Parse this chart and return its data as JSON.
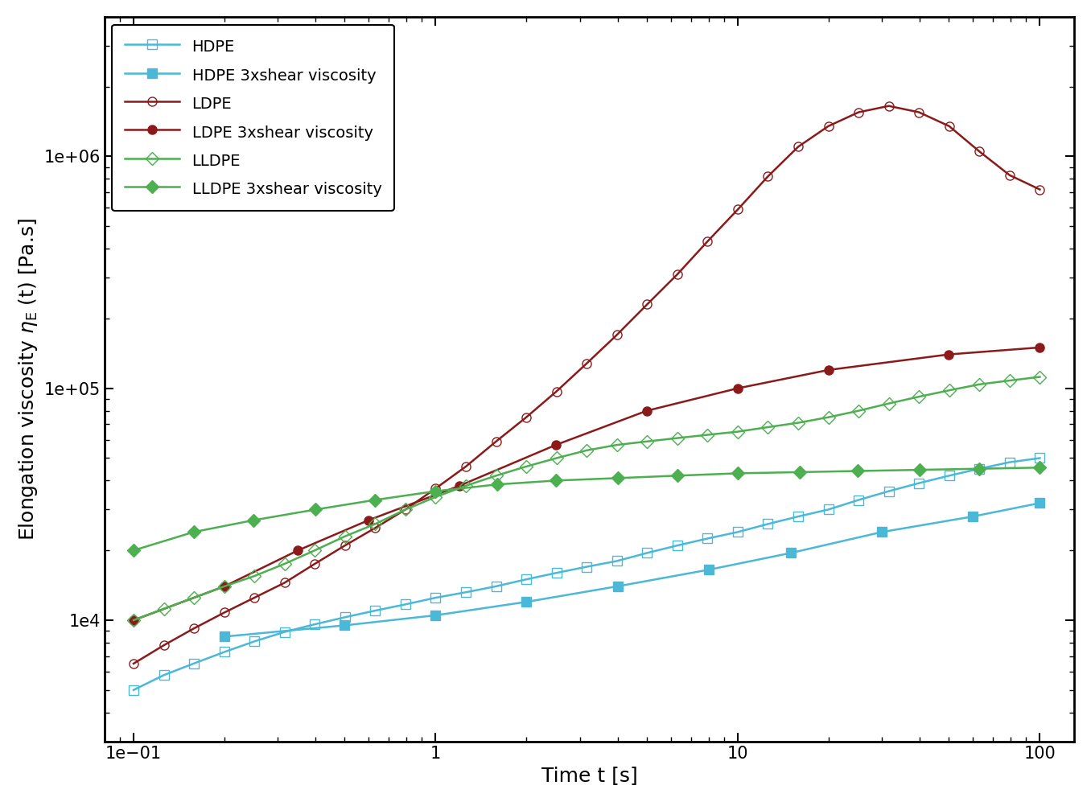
{
  "xlabel": "Time t [s]",
  "xlim": [
    0.08,
    130
  ],
  "ylim": [
    3000,
    4000000
  ],
  "colors": {
    "hdpe": "#4BB8D8",
    "ldpe": "#8B1A1A",
    "lldpe": "#4CAF50"
  },
  "HDPE_elongation": {
    "t": [
      0.1,
      0.126,
      0.158,
      0.2,
      0.251,
      0.316,
      0.398,
      0.501,
      0.631,
      0.794,
      1.0,
      1.259,
      1.585,
      1.995,
      2.512,
      3.162,
      3.981,
      5.012,
      6.31,
      7.943,
      10.0,
      12.59,
      15.85,
      19.95,
      25.12,
      31.62,
      39.81,
      50.12,
      63.1,
      79.43,
      100.0
    ],
    "eta": [
      5000,
      5800,
      6500,
      7300,
      8100,
      8900,
      9600,
      10300,
      11000,
      11700,
      12500,
      13200,
      14000,
      15000,
      16000,
      17000,
      18000,
      19500,
      21000,
      22500,
      24000,
      26000,
      28000,
      30000,
      33000,
      36000,
      39000,
      42000,
      45000,
      48000,
      50000
    ]
  },
  "HDPE_shear": {
    "t": [
      0.2,
      0.5,
      1.0,
      2.0,
      4.0,
      8.0,
      15.0,
      30.0,
      60.0,
      100.0
    ],
    "eta": [
      8500,
      9500,
      10500,
      12000,
      14000,
      16500,
      19500,
      24000,
      28000,
      32000
    ]
  },
  "LDPE_elongation": {
    "t": [
      0.1,
      0.126,
      0.158,
      0.2,
      0.251,
      0.316,
      0.398,
      0.501,
      0.631,
      0.794,
      1.0,
      1.259,
      1.585,
      1.995,
      2.512,
      3.162,
      3.981,
      5.012,
      6.31,
      7.943,
      10.0,
      12.59,
      15.85,
      19.95,
      25.12,
      31.62,
      39.81,
      50.12,
      63.1,
      79.43,
      100.0
    ],
    "eta": [
      6500,
      7800,
      9200,
      10800,
      12500,
      14500,
      17500,
      21000,
      25000,
      30000,
      37000,
      46000,
      59000,
      75000,
      97000,
      128000,
      170000,
      230000,
      310000,
      430000,
      590000,
      820000,
      1100000,
      1350000,
      1550000,
      1650000,
      1550000,
      1350000,
      1050000,
      830000,
      720000
    ]
  },
  "LDPE_shear": {
    "t": [
      0.1,
      0.2,
      0.35,
      0.6,
      1.2,
      2.5,
      5.0,
      10.0,
      20.0,
      50.0,
      100.0
    ],
    "eta": [
      10000,
      14000,
      20000,
      27000,
      38000,
      57000,
      80000,
      100000,
      120000,
      140000,
      150000
    ]
  },
  "LLDPE_elongation": {
    "t": [
      0.1,
      0.126,
      0.158,
      0.2,
      0.251,
      0.316,
      0.398,
      0.501,
      0.631,
      0.794,
      1.0,
      1.259,
      1.585,
      1.995,
      2.512,
      3.162,
      3.981,
      5.012,
      6.31,
      7.943,
      10.0,
      12.59,
      15.85,
      19.95,
      25.12,
      31.62,
      39.81,
      50.12,
      63.1,
      79.43,
      100.0
    ],
    "eta": [
      10000,
      11200,
      12500,
      14000,
      15500,
      17500,
      20000,
      23000,
      26000,
      30000,
      34000,
      38000,
      42000,
      46000,
      50000,
      54000,
      57000,
      59000,
      61000,
      63000,
      65000,
      68000,
      71000,
      75000,
      80000,
      86000,
      92000,
      98000,
      104000,
      108000,
      112000
    ]
  },
  "LLDPE_shear": {
    "t": [
      0.1,
      0.158,
      0.25,
      0.4,
      0.63,
      1.0,
      1.6,
      2.5,
      4.0,
      6.3,
      10.0,
      16.0,
      25.0,
      40.0,
      63.0,
      100.0
    ],
    "eta": [
      20000,
      24000,
      27000,
      30000,
      33000,
      36000,
      38500,
      40000,
      41000,
      42000,
      43000,
      43500,
      44000,
      44500,
      45000,
      45500
    ]
  }
}
